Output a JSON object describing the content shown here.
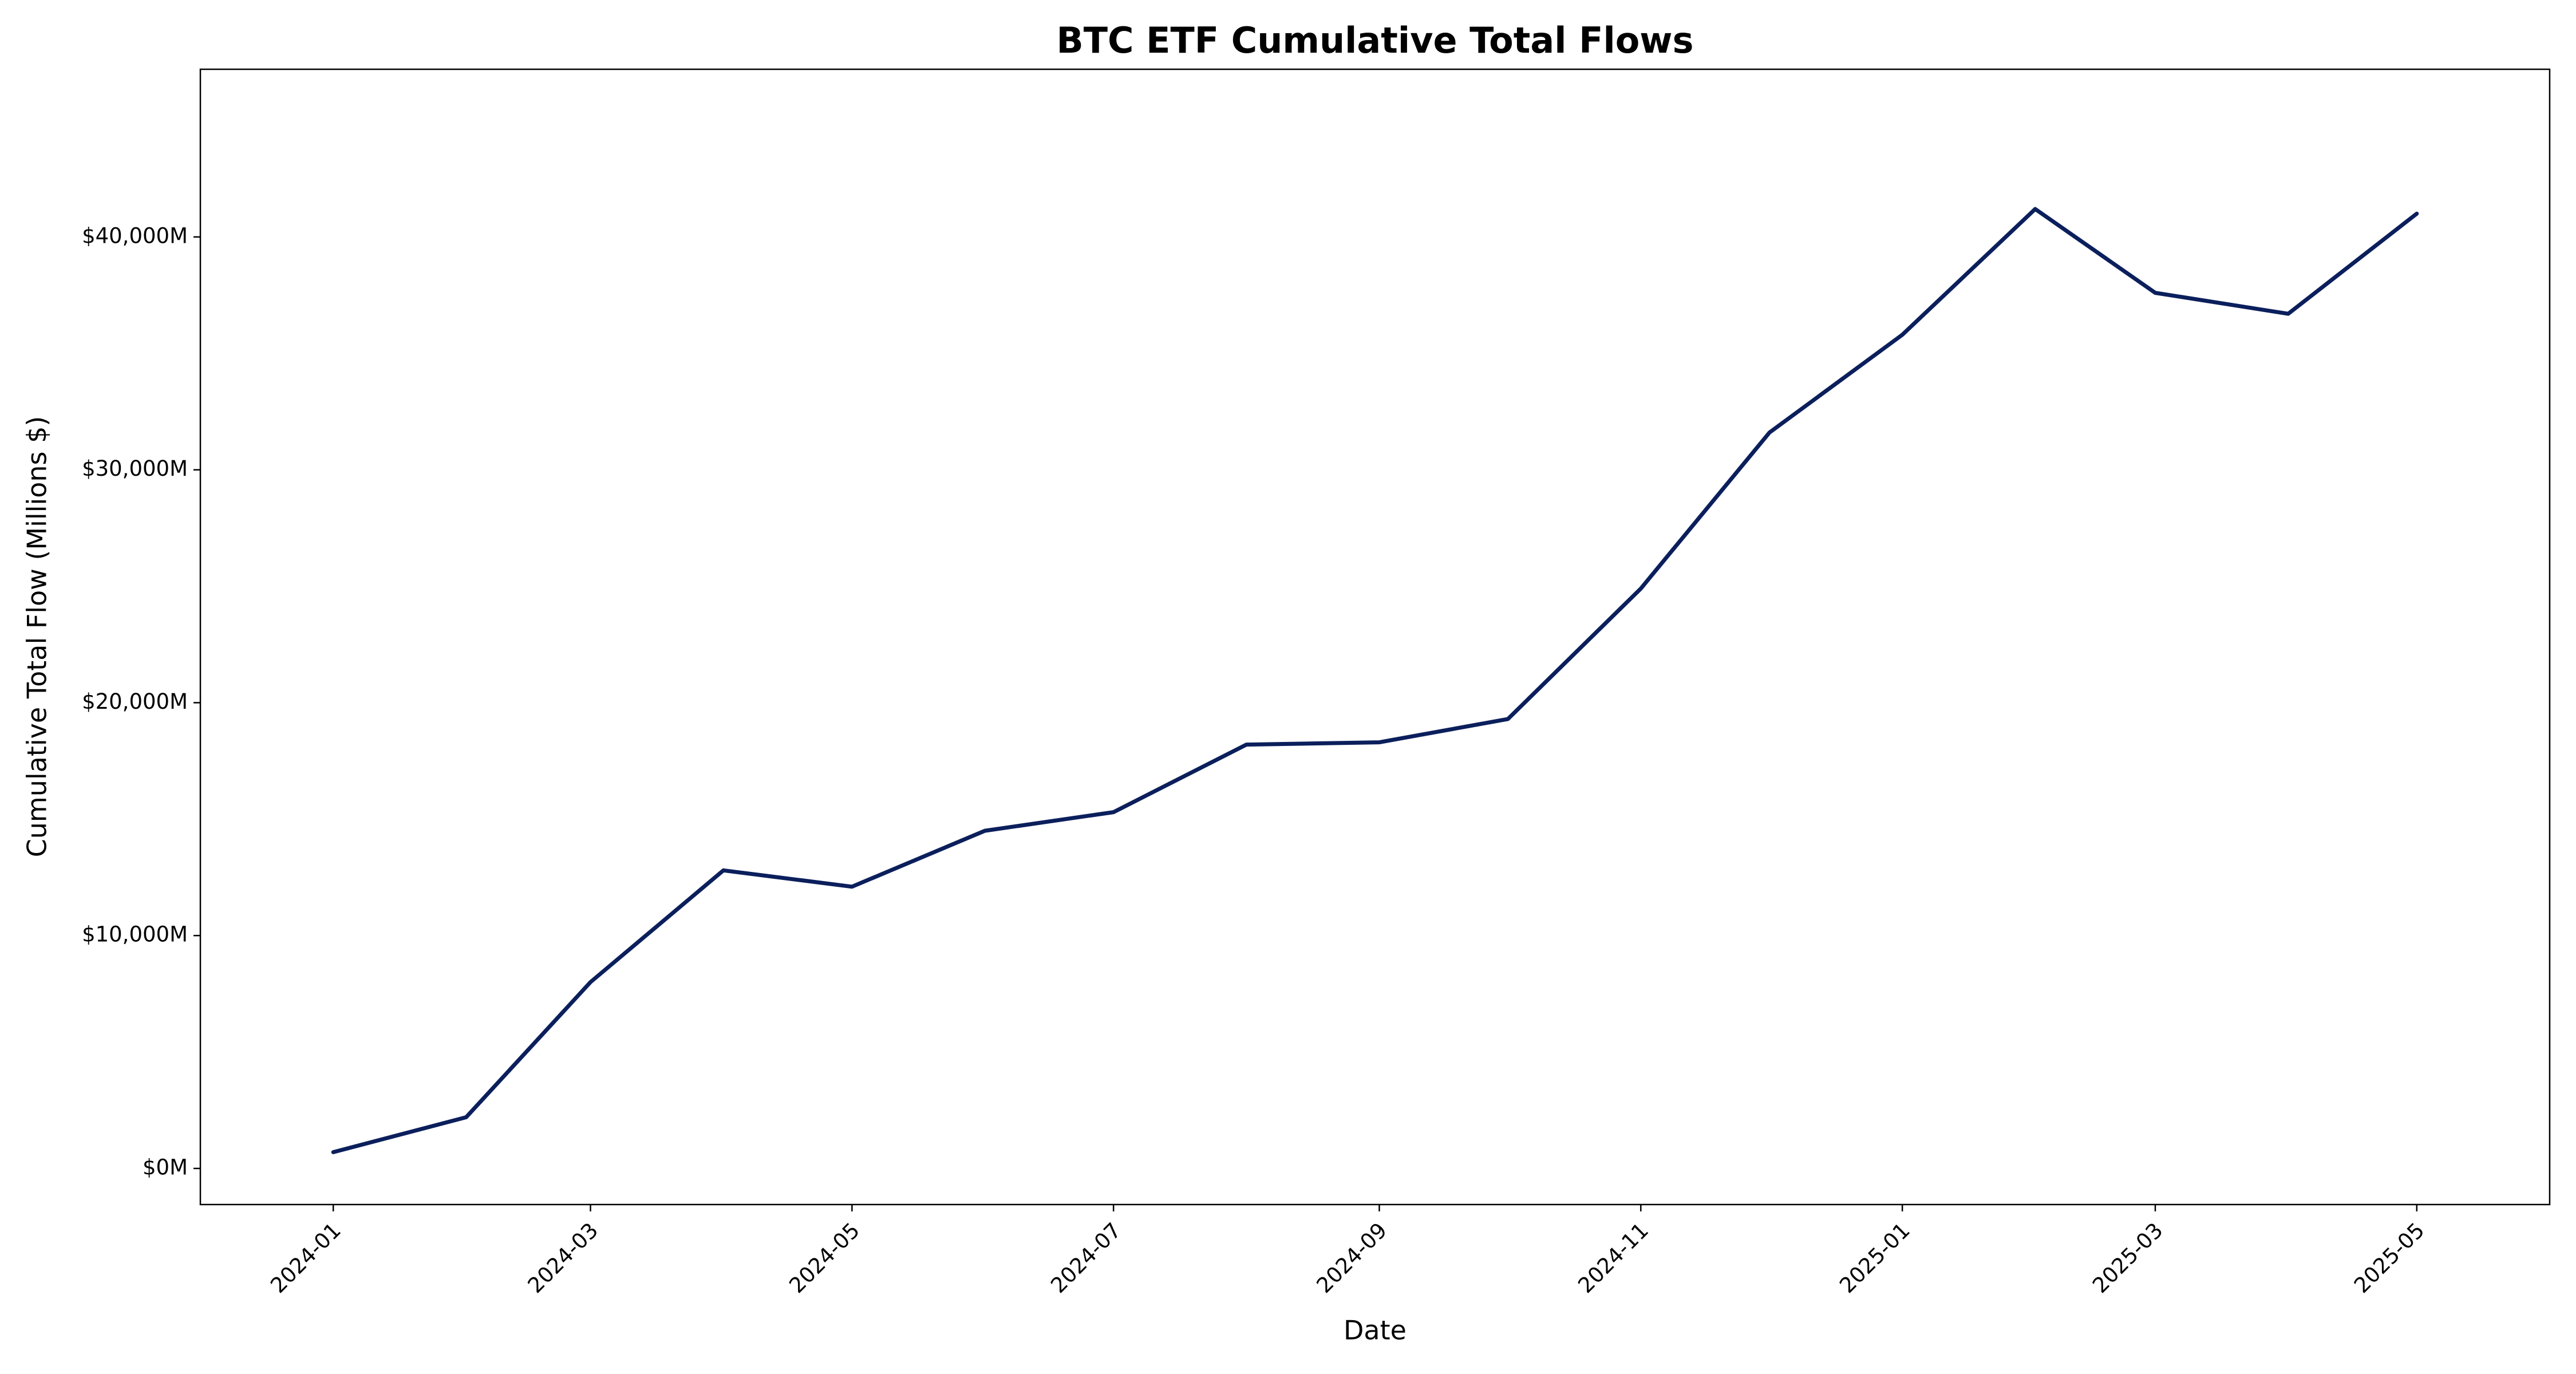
{
  "chart_data": {
    "type": "line",
    "title": "BTC ETF Cumulative Total Flows",
    "x_label": "Date",
    "y_label": "Cumulative Total Flow (Millions $)",
    "x": [
      "2024-01",
      "2024-02",
      "2024-03",
      "2024-04",
      "2024-05",
      "2024-06",
      "2024-07",
      "2024-08",
      "2024-09",
      "2024-10",
      "2024-11",
      "2024-12",
      "2025-01",
      "2025-02",
      "2025-03",
      "2025-04",
      "2025-05"
    ],
    "series": [
      {
        "name": "Cumulative Total Flow",
        "color": "#0b1f5c",
        "values": [
          700,
          2200,
          8000,
          12800,
          12100,
          14500,
          15300,
          18200,
          18300,
          19300,
          24900,
          31600,
          35800,
          41200,
          37600,
          36700,
          41000
        ]
      }
    ],
    "xlim": [
      "2023-12",
      "2025-06"
    ],
    "xticks": [
      "2024-01",
      "2024-03",
      "2024-05",
      "2024-07",
      "2024-09",
      "2024-11",
      "2025-01",
      "2025-03",
      "2025-05"
    ],
    "ylim": [
      -1550,
      47200
    ],
    "yticks": [
      {
        "value": 0,
        "label": "$0M"
      },
      {
        "value": 10000,
        "label": "$10,000M"
      },
      {
        "value": 20000,
        "label": "$20,000M"
      },
      {
        "value": 30000,
        "label": "$30,000M"
      },
      {
        "value": 40000,
        "label": "$40,000M"
      }
    ],
    "grid": false,
    "legend": false
  }
}
